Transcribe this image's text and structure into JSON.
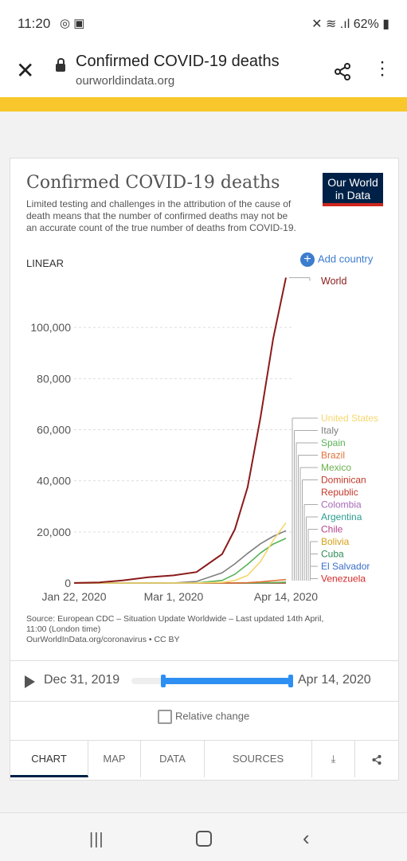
{
  "status": {
    "time": "11:20",
    "battery": "62%"
  },
  "browser": {
    "page_title": "Confirmed COVID-19 deaths",
    "url": "ourworldindata.org"
  },
  "chart_header": {
    "title": "Confirmed COVID-19 deaths",
    "subtitle": "Limited testing and challenges in the attribution of the cause of death means that the number of confirmed deaths may not be an accurate count of the true number of deaths from COVID-19.",
    "logo_line1": "Our World",
    "logo_line2": "in Data",
    "scale_label": "LINEAR",
    "add_country": "Add country"
  },
  "chart_data": {
    "type": "line",
    "x_dates": [
      "2020-01-22",
      "2020-02-01",
      "2020-02-10",
      "2020-02-20",
      "2020-03-01",
      "2020-03-10",
      "2020-03-20",
      "2020-03-25",
      "2020-03-30",
      "2020-04-04",
      "2020-04-09",
      "2020-04-14"
    ],
    "x_ticks": [
      "Jan 22, 2020",
      "Mar 1, 2020",
      "Apr 14, 2020"
    ],
    "y_ticks": [
      0,
      20000,
      40000,
      60000,
      80000,
      100000
    ],
    "y_tick_labels": [
      "0",
      "20,000",
      "40,000",
      "60,000",
      "80,000",
      "100,000"
    ],
    "ylim": [
      0,
      120000
    ],
    "grid": true,
    "series": [
      {
        "name": "World",
        "color": "#8b1a1a",
        "values": [
          17,
          259,
          1018,
          2250,
          2990,
          4300,
          11300,
          21000,
          37500,
          64700,
          95700,
          119500
        ]
      },
      {
        "name": "United States",
        "color": "#f5d76e",
        "values": [
          0,
          0,
          0,
          0,
          1,
          26,
          260,
          1000,
          3000,
          8400,
          16700,
          23600
        ]
      },
      {
        "name": "Italy",
        "color": "#7f7f7f",
        "values": [
          0,
          0,
          0,
          1,
          34,
          631,
          4032,
          7503,
          11591,
          15362,
          18279,
          20465
        ]
      },
      {
        "name": "Spain",
        "color": "#5ab35a",
        "values": [
          0,
          0,
          0,
          0,
          0,
          36,
          1043,
          3434,
          7340,
          11744,
          15238,
          17489
        ]
      },
      {
        "name": "Brazil",
        "color": "#e2703a",
        "values": [
          0,
          0,
          0,
          0,
          0,
          0,
          7,
          57,
          159,
          432,
          941,
          1328
        ]
      },
      {
        "name": "Mexico",
        "color": "#6ab04c",
        "values": [
          0,
          0,
          0,
          0,
          0,
          0,
          2,
          6,
          28,
          79,
          194,
          332
        ]
      },
      {
        "name": "Dominican Republic",
        "color": "#c0392b",
        "values": [
          0,
          0,
          0,
          0,
          0,
          0,
          2,
          6,
          39,
          82,
          118,
          177
        ]
      },
      {
        "name": "Colombia",
        "color": "#a66ab8",
        "values": [
          0,
          0,
          0,
          0,
          0,
          0,
          0,
          3,
          6,
          32,
          54,
          100
        ]
      },
      {
        "name": "Argentina",
        "color": "#2a9d8f",
        "values": [
          0,
          0,
          0,
          0,
          0,
          1,
          3,
          6,
          23,
          44,
          82,
          98
        ]
      },
      {
        "name": "Chile",
        "color": "#b5458b",
        "values": [
          0,
          0,
          0,
          0,
          0,
          0,
          0,
          2,
          8,
          27,
          57,
          94
        ]
      },
      {
        "name": "Bolivia",
        "color": "#d4a017",
        "values": [
          0,
          0,
          0,
          0,
          0,
          0,
          0,
          1,
          2,
          9,
          20,
          31
        ]
      },
      {
        "name": "Cuba",
        "color": "#2e8b57",
        "values": [
          0,
          0,
          0,
          0,
          0,
          0,
          1,
          1,
          5,
          9,
          21,
          27
        ]
      },
      {
        "name": "El Salvador",
        "color": "#3c6ec9",
        "values": [
          0,
          0,
          0,
          0,
          0,
          0,
          0,
          0,
          1,
          5,
          7,
          8
        ]
      },
      {
        "name": "Venezuela",
        "color": "#d62828",
        "values": [
          0,
          0,
          0,
          0,
          0,
          0,
          0,
          1,
          2,
          5,
          7,
          9
        ]
      }
    ],
    "legend_labels": [
      "World",
      "United States",
      "Italy",
      "Spain",
      "Brazil",
      "Mexico",
      "Dominican",
      "Republic",
      "Colombia",
      "Argentina",
      "Chile",
      "Bolivia",
      "Cuba",
      "El Salvador",
      "Venezuela"
    ]
  },
  "source": {
    "line1": "Source: European CDC – Situation Update Worldwide – Last updated 14th April,",
    "line2": "11:00 (London time)",
    "line3": "OurWorldInData.org/coronavirus • CC BY"
  },
  "timeline": {
    "start": "Dec 31, 2019",
    "end": "Apr 14, 2020",
    "range_start": 0.2,
    "range_end": 1.0
  },
  "relative_change": "Relative change",
  "tabs": [
    "CHART",
    "MAP",
    "DATA",
    "SOURCES"
  ]
}
